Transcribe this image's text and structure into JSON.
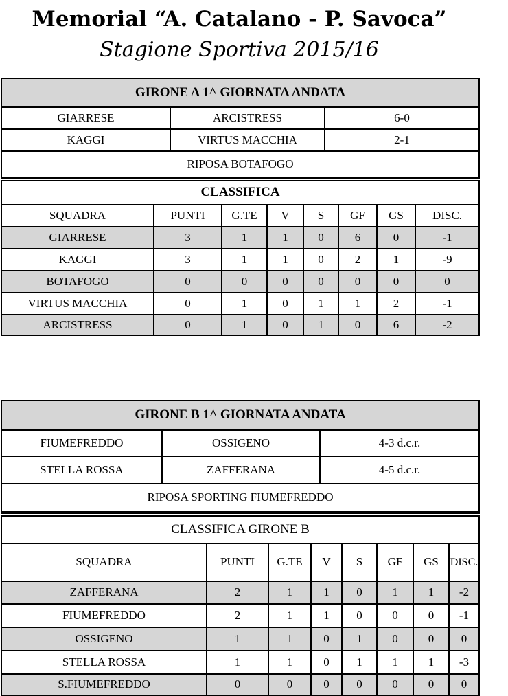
{
  "title": "Memorial “A. Catalano - P. Savoca”",
  "subtitle": "Stagione Sportiva  2015/16",
  "groups": [
    {
      "header": "GIRONE A  1^ GIORNATA ANDATA",
      "matches": [
        [
          "GIARRESE",
          "ARCISTRESS",
          "6-0"
        ],
        [
          "KAGGI",
          "VIRTUS MACCHIA",
          "2-1"
        ]
      ],
      "rest": "RIPOSA BOTAFOGO",
      "standings_title": "CLASSIFICA",
      "columns": [
        "SQUADRA",
        "PUNTI",
        "G.TE",
        "V",
        "S",
        "GF",
        "GS",
        "DISC."
      ],
      "rows": [
        [
          "GIARRESE",
          "3",
          "1",
          "1",
          "0",
          "6",
          "0",
          "-1"
        ],
        [
          "KAGGI",
          "3",
          "1",
          "1",
          "0",
          "2",
          "1",
          "-9"
        ],
        [
          "BOTAFOGO",
          "0",
          "0",
          "0",
          "0",
          "0",
          "0",
          "0"
        ],
        [
          "VIRTUS MACCHIA",
          "0",
          "1",
          "0",
          "1",
          "1",
          "2",
          "-1"
        ],
        [
          "ARCISTRESS",
          "0",
          "1",
          "0",
          "1",
          "0",
          "6",
          "-2"
        ]
      ]
    },
    {
      "header": "GIRONE B  1^ GIORNATA ANDATA",
      "matches": [
        [
          "FIUMEFREDDO",
          "OSSIGENO",
          "4-3 d.c.r."
        ],
        [
          "STELLA ROSSA",
          "ZAFFERANA",
          "4-5 d.c.r."
        ]
      ],
      "rest": "RIPOSA  SPORTING FIUMEFREDDO",
      "standings_title": "CLASSIFICA GIRONE B",
      "columns": [
        "SQUADRA",
        "PUNTI",
        "G.TE",
        "V",
        "S",
        "GF",
        "GS",
        "DISC."
      ],
      "rows": [
        [
          "ZAFFERANA",
          "2",
          "1",
          "1",
          "0",
          "1",
          "1",
          "-2"
        ],
        [
          "FIUMEFREDDO",
          "2",
          "1",
          "1",
          "0",
          "0",
          "0",
          "-1"
        ],
        [
          "OSSIGENO",
          "1",
          "1",
          "0",
          "1",
          "0",
          "0",
          "0"
        ],
        [
          "STELLA ROSSA",
          "1",
          "1",
          "0",
          "1",
          "1",
          "1",
          "-3"
        ],
        [
          "S.FIUMEFREDDO",
          "0",
          "0",
          "0",
          "0",
          "0",
          "0",
          "0"
        ]
      ]
    }
  ]
}
